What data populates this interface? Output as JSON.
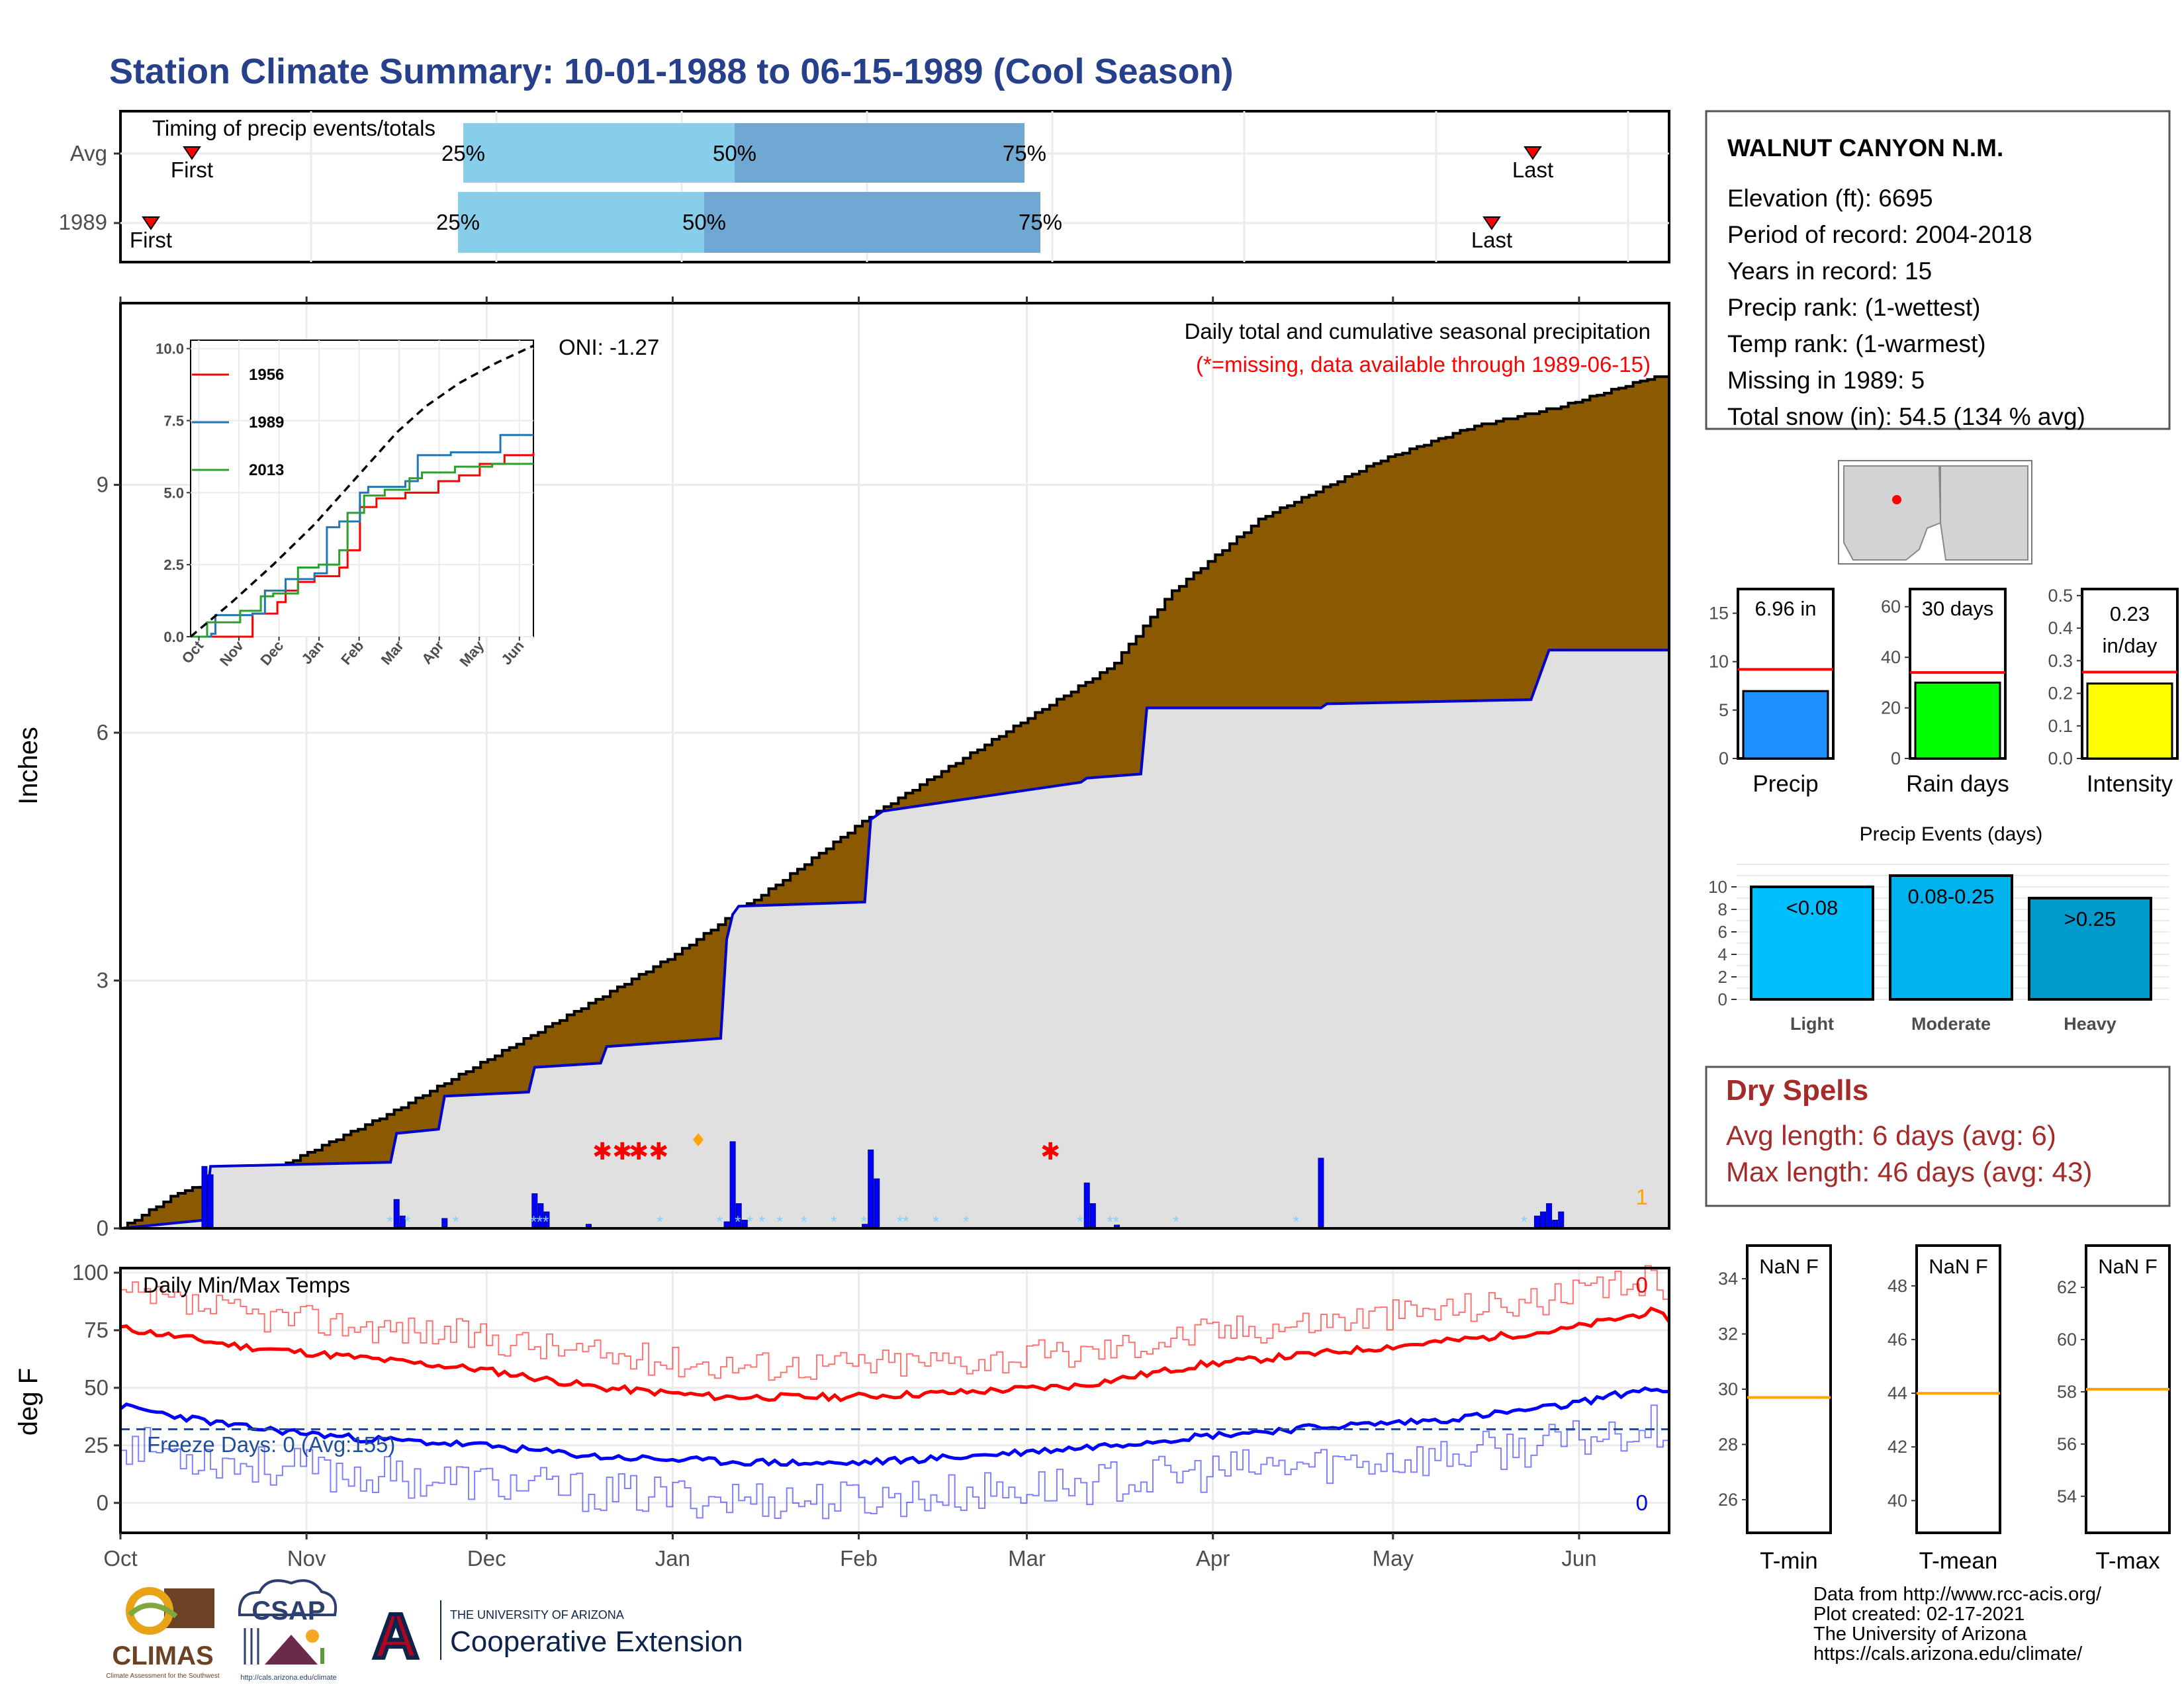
{
  "title": "Station Climate Summary: 10-01-1988 to 06-15-1989 (Cool Season)",
  "colors": {
    "title": "#27408B",
    "precip_fill": "#8B5A00",
    "climo_fill": "#E0E0E0",
    "climo_line": "#0000CD",
    "daily_bar": "#0000FF",
    "tmax": "#FF0000",
    "tmin": "#0000FF",
    "dry_spell": "#A52A2A",
    "q_light": "#87CEEB",
    "q_dark": "#6FA8D2",
    "precip_bar": "#1E90FF",
    "rain_bar": "#00FF00",
    "intensity_bar": "#FFFF00",
    "event_light": "#00BFFF",
    "event_moderate": "#00B2EE",
    "event_heavy": "#009ACD",
    "ref_line": "#FF0000",
    "norm_line": "#FFA500"
  },
  "timing": {
    "label": "Timing of precip events/totals",
    "rows": [
      {
        "name": "Avg",
        "first": "First",
        "last": "Last",
        "p25": "25%",
        "p50": "50%",
        "p75": "75%"
      },
      {
        "name": "1989",
        "first": "First",
        "last": "Last",
        "p25": "25%",
        "p50": "50%",
        "p75": "75%"
      }
    ]
  },
  "station": {
    "name": "WALNUT CANYON N.M.",
    "lines": [
      "Elevation (ft): 6695",
      "Period of record: 2004-2018",
      "Years in record: 15",
      "Precip rank:  (1-wettest)",
      "Temp rank:  (1-warmest)",
      "Missing in 1989: 5",
      "Total snow (in): 54.5 (134 % avg)"
    ]
  },
  "main_panel": {
    "ylabel": "Inches",
    "title": "Daily total and cumulative seasonal precipitation",
    "missing_note": "(*=missing, data available through 1989-06-15)",
    "oni": "ONI: -1.27",
    "count_label": "1",
    "y_ticks": [
      "0",
      "3",
      "6",
      "9"
    ]
  },
  "inset": {
    "y_ticks": [
      "0.0",
      "2.5",
      "5.0",
      "7.5",
      "10.0"
    ],
    "x_ticks": [
      "Oct",
      "Nov",
      "Dec",
      "Jan",
      "Feb",
      "Mar",
      "Apr",
      "May",
      "Jun"
    ],
    "legend": [
      "1956",
      "1989",
      "2013"
    ]
  },
  "temps": {
    "title": "Daily Min/Max Temps",
    "ylabel": "deg F",
    "freeze": "Freeze Days: 0 (Avg:155)",
    "max_count": "0",
    "min_count": "0",
    "y_ticks": [
      "0",
      "25",
      "50",
      "75",
      "100"
    ],
    "x_ticks": [
      "Oct",
      "Nov",
      "Dec",
      "Jan",
      "Feb",
      "Mar",
      "Apr",
      "May",
      "Jun"
    ]
  },
  "summary_bars": [
    {
      "label": "Precip",
      "value_label": "6.96 in",
      "value": 6.96,
      "ref": 9.2,
      "ymax": 17.5,
      "ticks": [
        "0",
        "5",
        "10",
        "15"
      ],
      "tick_vals": [
        0,
        5,
        10,
        15
      ]
    },
    {
      "label": "Rain days",
      "value_label": "30 days",
      "value": 30,
      "ref": 34,
      "ymax": 67,
      "ticks": [
        "0",
        "20",
        "40",
        "60"
      ],
      "tick_vals": [
        0,
        20,
        40,
        60
      ]
    },
    {
      "label": "Intensity",
      "value_label": "0.23 in/day",
      "value": 0.23,
      "ref": 0.265,
      "ymax": 0.52,
      "ticks": [
        "0.0",
        "0.1",
        "0.2",
        "0.3",
        "0.4",
        "0.5"
      ],
      "tick_vals": [
        0,
        0.1,
        0.2,
        0.3,
        0.4,
        0.5
      ]
    }
  ],
  "events": {
    "title": "Precip Events (days)",
    "ticks": [
      "0",
      "2",
      "4",
      "6",
      "8",
      "10"
    ],
    "bars": [
      {
        "label": "Light",
        "value_label": "<0.08",
        "value": 10
      },
      {
        "label": "Moderate",
        "value_label": "0.08-0.25",
        "value": 11
      },
      {
        "label": "Heavy",
        "value_label": ">0.25",
        "value": 9
      }
    ]
  },
  "dry_spells": {
    "title": "Dry Spells",
    "avg": "Avg length: 6 days (avg: 6)",
    "max": "Max length: 46 days (avg: 43)"
  },
  "temp_summary": [
    {
      "label": "T-min",
      "value_label": "NaN F",
      "ticks": [
        "26",
        "28",
        "30",
        "32",
        "34"
      ],
      "tick_vals": [
        26,
        28,
        30,
        32,
        34
      ],
      "ymin": 24.8,
      "ymax": 35.2,
      "norm": 29.7
    },
    {
      "label": "T-mean",
      "value_label": "NaN F",
      "ticks": [
        "40",
        "42",
        "44",
        "46",
        "48"
      ],
      "tick_vals": [
        40,
        42,
        44,
        46,
        48
      ],
      "ymin": 38.8,
      "ymax": 49.5,
      "norm": 44.0
    },
    {
      "label": "T-max",
      "value_label": "NaN F",
      "ticks": [
        "54",
        "56",
        "58",
        "60",
        "62"
      ],
      "tick_vals": [
        54,
        56,
        58,
        60,
        62
      ],
      "ymin": 52.6,
      "ymax": 63.6,
      "norm": 58.1
    }
  ],
  "footer": {
    "credits": [
      "Data from http://www.rcc-acis.org/",
      "Plot created: 02-17-2021",
      "The University of Arizona",
      "https://cals.arizona.edu/climate/"
    ],
    "climas": "CLIMAS",
    "climas_sub": "Climate Assessment for the Southwest",
    "csap": "CSAP",
    "csap_url": "http://cals.arizona.edu/climate",
    "ua_small": "THE UNIVERSITY OF ARIZONA",
    "ua_big": "Cooperative Extension"
  },
  "chart_data": [
    {
      "type": "area",
      "name": "cumulative-precip",
      "x_unit": "days since Oct 1",
      "xlim": [
        0,
        258
      ],
      "ylim": [
        0,
        11.2
      ],
      "series": [
        {
          "name": "cumulative",
          "x": [
            0,
            10,
            25,
            45,
            65,
            80,
            92,
            110,
            125,
            145,
            165,
            175,
            190,
            210,
            225,
            240,
            255,
            258
          ],
          "y": [
            0,
            0.45,
            0.7,
            1.4,
            2.2,
            2.8,
            3.3,
            4.2,
            5.0,
            5.9,
            6.8,
            7.7,
            8.6,
            9.3,
            9.7,
            9.95,
            10.3,
            10.3
          ]
        },
        {
          "name": "1989",
          "x": [
            0,
            14,
            15,
            45,
            46,
            53,
            54,
            68,
            69,
            80,
            81,
            100,
            101,
            102,
            103,
            124,
            125,
            126,
            127,
            160,
            161,
            170,
            171,
            200,
            201,
            235,
            236,
            237,
            238,
            258
          ],
          "y": [
            0,
            0.1,
            0.75,
            0.8,
            1.15,
            1.2,
            1.6,
            1.65,
            1.95,
            2.0,
            2.2,
            2.3,
            3.5,
            3.8,
            3.9,
            3.95,
            4.95,
            5.0,
            5.05,
            5.4,
            5.45,
            5.5,
            6.3,
            6.3,
            6.35,
            6.4,
            6.6,
            6.8,
            7.0,
            7.0
          ]
        }
      ]
    },
    {
      "type": "line",
      "name": "inset-cumulative",
      "categories": [
        "Oct",
        "Nov",
        "Dec",
        "Jan",
        "Feb",
        "Mar",
        "Apr",
        "May",
        "Jun"
      ],
      "ylim": [
        0,
        10.2
      ],
      "series": [
        {
          "name": "1956",
          "x": [
            0,
            1.4,
            1.5,
            2.1,
            2.3,
            2.6,
            3.0,
            3.6,
            3.8,
            4.1,
            4.5,
            5.2,
            6.0,
            6.5,
            7.0,
            7.6,
            8.3
          ],
          "y": [
            0,
            0,
            0.8,
            1.2,
            1.6,
            1.9,
            2.1,
            2.4,
            3.0,
            4.5,
            4.8,
            5.0,
            5.4,
            5.6,
            6.0,
            6.3,
            6.4
          ]
        },
        {
          "name": "1989",
          "x": [
            0,
            0.5,
            0.6,
            1.5,
            1.8,
            2.3,
            3.0,
            3.3,
            3.6,
            4.1,
            4.3,
            5.2,
            5.5,
            6.3,
            7.5,
            8.3
          ],
          "y": [
            0,
            0.1,
            0.75,
            0.8,
            1.6,
            2.0,
            2.2,
            3.8,
            4.0,
            5.0,
            5.2,
            5.4,
            6.3,
            6.4,
            7.0,
            7.0
          ]
        },
        {
          "name": "2013",
          "x": [
            0,
            0.4,
            1.2,
            1.7,
            2.0,
            2.6,
            3.1,
            3.6,
            3.8,
            4.2,
            4.7,
            5.3,
            5.6,
            6.4,
            7.3,
            8.3
          ],
          "y": [
            0,
            0.5,
            0.9,
            1.4,
            1.5,
            2.4,
            2.5,
            3.0,
            4.3,
            4.9,
            5.1,
            5.5,
            5.7,
            5.9,
            6.0,
            6.0
          ]
        },
        {
          "name": "avg",
          "x": [
            0,
            1,
            2,
            3,
            4,
            5,
            5.7,
            6.5,
            7.4,
            8.3
          ],
          "y": [
            0,
            1.2,
            2.5,
            3.9,
            5.5,
            7.1,
            8.0,
            8.8,
            9.5,
            10.1
          ]
        }
      ]
    },
    {
      "type": "line",
      "name": "daily-temps",
      "x_unit": "days since Oct 1",
      "xlim": [
        0,
        258
      ],
      "ylim": [
        -13,
        102
      ],
      "series": [
        {
          "name": "tmax-climo",
          "x": [
            0,
            20,
            40,
            60,
            80,
            100,
            120,
            140,
            160,
            180,
            200,
            220,
            240,
            255,
            258
          ],
          "y": [
            76,
            68,
            63,
            58,
            50,
            46,
            46,
            48,
            51,
            60,
            65,
            70,
            75,
            83,
            80
          ]
        },
        {
          "name": "tmin-climo",
          "x": [
            0,
            20,
            40,
            60,
            80,
            100,
            120,
            140,
            160,
            180,
            200,
            220,
            240,
            255,
            258
          ],
          "y": [
            42,
            33,
            28,
            25,
            20,
            18,
            17,
            20,
            24,
            29,
            33,
            36,
            42,
            50,
            47
          ]
        },
        {
          "name": "freeze",
          "x": [
            0,
            258
          ],
          "y": [
            32,
            32
          ]
        }
      ]
    }
  ]
}
